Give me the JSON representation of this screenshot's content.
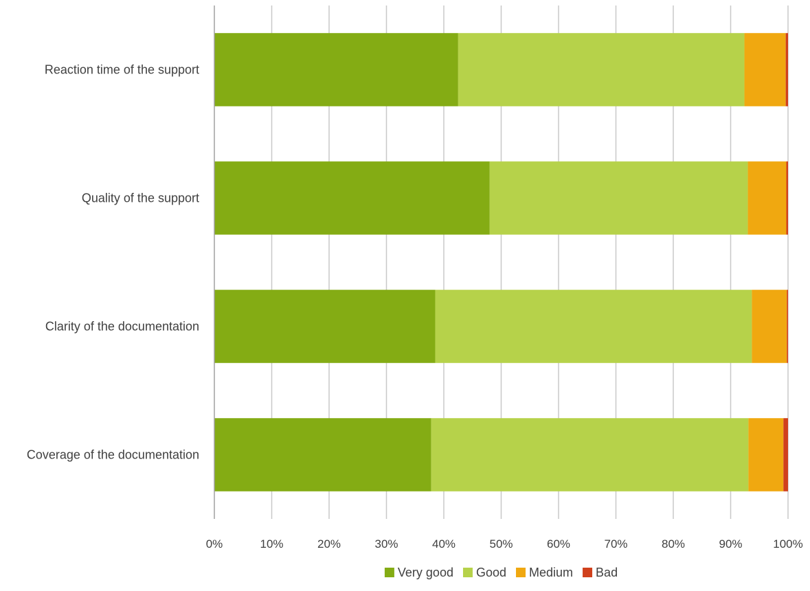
{
  "chart_data": {
    "type": "bar",
    "orientation": "horizontal",
    "stacked": true,
    "percent": true,
    "title": "",
    "xlabel": "",
    "ylabel": "",
    "xlim": [
      0,
      100
    ],
    "x_ticks": [
      "0%",
      "10%",
      "20%",
      "30%",
      "40%",
      "50%",
      "60%",
      "70%",
      "80%",
      "90%",
      "100%"
    ],
    "grid": true,
    "legend_position": "bottom",
    "categories": [
      "Reaction time of the support",
      "Quality of the support",
      "Clarity of the documentation",
      "Coverage of the documentation"
    ],
    "series": [
      {
        "name": "Very good",
        "color": "#84ac14",
        "values": [
          42.5,
          48.0,
          38.5,
          37.8
        ]
      },
      {
        "name": "Good",
        "color": "#b6d24a",
        "values": [
          49.9,
          45.0,
          55.2,
          55.3
        ]
      },
      {
        "name": "Medium",
        "color": "#f0a810",
        "values": [
          7.2,
          6.7,
          6.1,
          6.1
        ]
      },
      {
        "name": "Bad",
        "color": "#d0401c",
        "values": [
          0.4,
          0.3,
          0.2,
          0.8
        ]
      }
    ]
  }
}
